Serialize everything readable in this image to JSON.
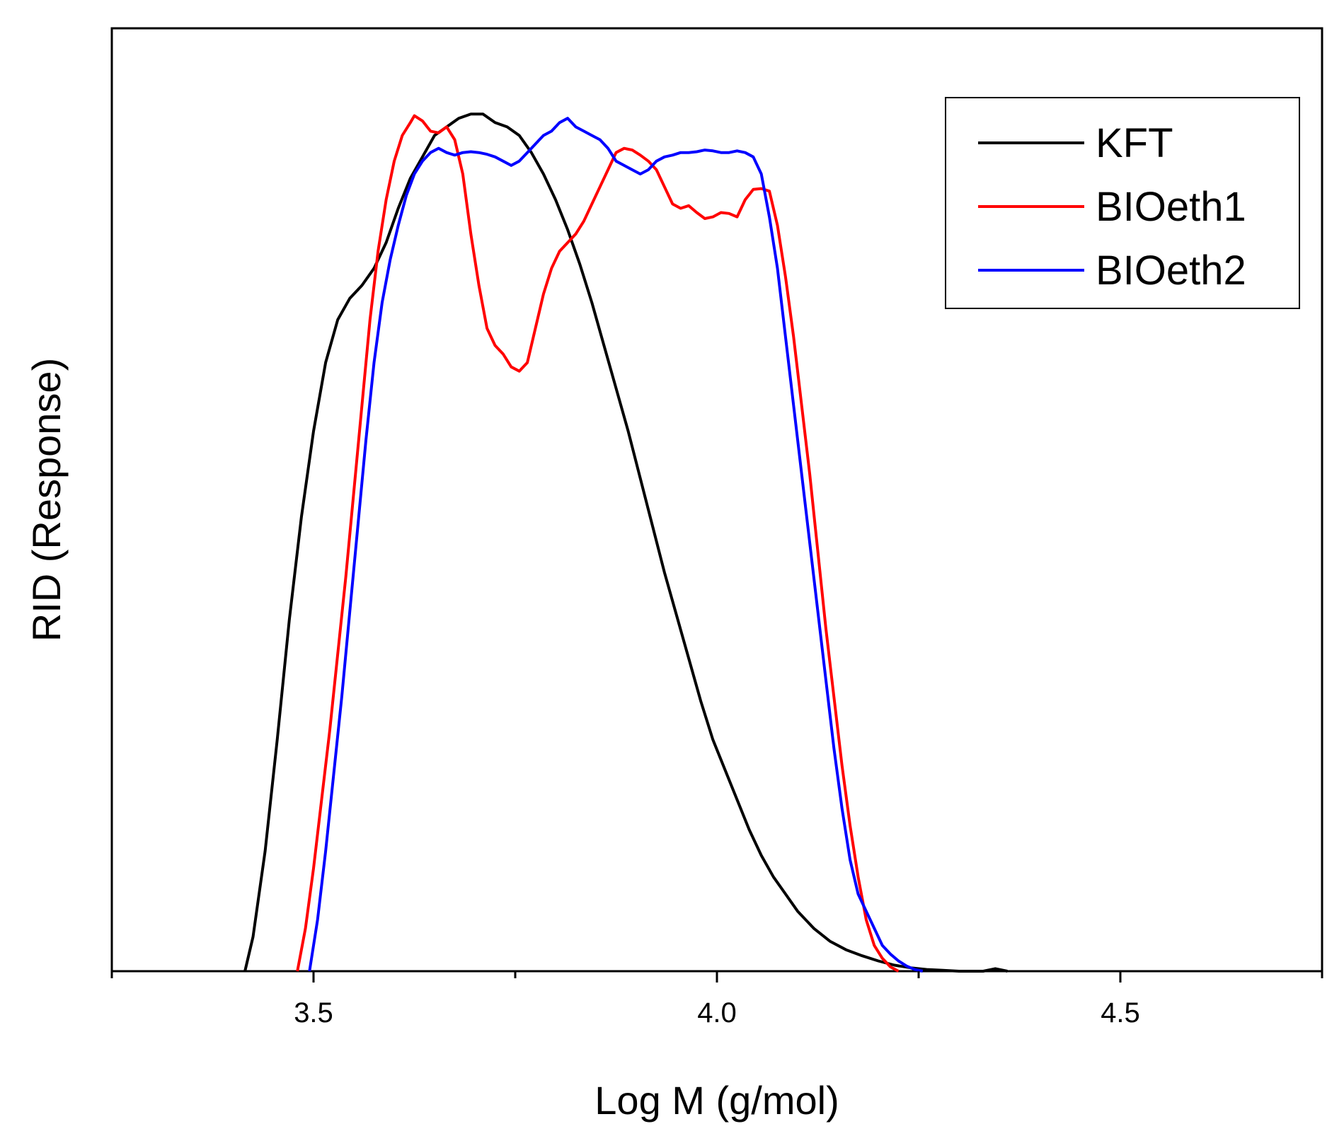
{
  "chart_data": {
    "type": "line",
    "xlabel": "Log M (g/mol)",
    "ylabel": "RID (Response)",
    "xlim": [
      3.25,
      4.75
    ],
    "ylim": [
      0,
      1.1
    ],
    "x_ticks": [
      {
        "value": 3.5,
        "label": "3.5"
      },
      {
        "value": 4.0,
        "label": "4.0"
      },
      {
        "value": 4.5,
        "label": "4.5"
      }
    ],
    "x_minor_ticks": [
      3.25,
      3.75,
      4.25,
      4.75
    ],
    "y_ticks_shown": false,
    "grid": false,
    "legend_position": "top-right",
    "series": [
      {
        "name": "KFT",
        "color": "#000000",
        "points": [
          [
            3.415,
            0.0
          ],
          [
            3.425,
            0.04
          ],
          [
            3.44,
            0.14
          ],
          [
            3.455,
            0.27
          ],
          [
            3.47,
            0.41
          ],
          [
            3.485,
            0.53
          ],
          [
            3.5,
            0.63
          ],
          [
            3.515,
            0.71
          ],
          [
            3.53,
            0.76
          ],
          [
            3.545,
            0.785
          ],
          [
            3.56,
            0.8
          ],
          [
            3.575,
            0.82
          ],
          [
            3.59,
            0.85
          ],
          [
            3.605,
            0.89
          ],
          [
            3.62,
            0.925
          ],
          [
            3.635,
            0.95
          ],
          [
            3.65,
            0.975
          ],
          [
            3.665,
            0.985
          ],
          [
            3.68,
            0.995
          ],
          [
            3.695,
            1.0
          ],
          [
            3.71,
            1.0
          ],
          [
            3.725,
            0.99
          ],
          [
            3.74,
            0.985
          ],
          [
            3.755,
            0.975
          ],
          [
            3.77,
            0.955
          ],
          [
            3.785,
            0.93
          ],
          [
            3.8,
            0.9
          ],
          [
            3.815,
            0.865
          ],
          [
            3.83,
            0.825
          ],
          [
            3.845,
            0.78
          ],
          [
            3.86,
            0.73
          ],
          [
            3.875,
            0.68
          ],
          [
            3.89,
            0.63
          ],
          [
            3.905,
            0.575
          ],
          [
            3.92,
            0.52
          ],
          [
            3.935,
            0.465
          ],
          [
            3.95,
            0.415
          ],
          [
            3.965,
            0.365
          ],
          [
            3.98,
            0.315
          ],
          [
            3.995,
            0.27
          ],
          [
            4.01,
            0.235
          ],
          [
            4.025,
            0.2
          ],
          [
            4.04,
            0.165
          ],
          [
            4.055,
            0.135
          ],
          [
            4.07,
            0.11
          ],
          [
            4.085,
            0.09
          ],
          [
            4.1,
            0.07
          ],
          [
            4.12,
            0.05
          ],
          [
            4.14,
            0.035
          ],
          [
            4.16,
            0.025
          ],
          [
            4.18,
            0.018
          ],
          [
            4.2,
            0.012
          ],
          [
            4.22,
            0.007
          ],
          [
            4.24,
            0.004
          ],
          [
            4.26,
            0.002
          ],
          [
            4.28,
            0.001
          ],
          [
            4.3,
            0.0
          ],
          [
            4.33,
            0.0
          ],
          [
            4.345,
            0.003
          ],
          [
            4.36,
            0.0
          ]
        ]
      },
      {
        "name": "BIOeth1",
        "color": "#ff0000",
        "points": [
          [
            3.48,
            0.0
          ],
          [
            3.49,
            0.05
          ],
          [
            3.5,
            0.12
          ],
          [
            3.51,
            0.2
          ],
          [
            3.52,
            0.28
          ],
          [
            3.53,
            0.37
          ],
          [
            3.54,
            0.46
          ],
          [
            3.55,
            0.56
          ],
          [
            3.56,
            0.66
          ],
          [
            3.57,
            0.76
          ],
          [
            3.58,
            0.84
          ],
          [
            3.59,
            0.9
          ],
          [
            3.6,
            0.945
          ],
          [
            3.61,
            0.975
          ],
          [
            3.62,
            0.99
          ],
          [
            3.625,
            0.998
          ],
          [
            3.635,
            0.992
          ],
          [
            3.645,
            0.98
          ],
          [
            3.655,
            0.978
          ],
          [
            3.665,
            0.985
          ],
          [
            3.675,
            0.97
          ],
          [
            3.685,
            0.93
          ],
          [
            3.695,
            0.86
          ],
          [
            3.705,
            0.8
          ],
          [
            3.715,
            0.75
          ],
          [
            3.725,
            0.73
          ],
          [
            3.735,
            0.72
          ],
          [
            3.745,
            0.705
          ],
          [
            3.755,
            0.7
          ],
          [
            3.765,
            0.71
          ],
          [
            3.775,
            0.75
          ],
          [
            3.785,
            0.79
          ],
          [
            3.795,
            0.82
          ],
          [
            3.805,
            0.84
          ],
          [
            3.815,
            0.85
          ],
          [
            3.825,
            0.86
          ],
          [
            3.835,
            0.875
          ],
          [
            3.845,
            0.895
          ],
          [
            3.855,
            0.915
          ],
          [
            3.865,
            0.935
          ],
          [
            3.875,
            0.955
          ],
          [
            3.885,
            0.96
          ],
          [
            3.895,
            0.958
          ],
          [
            3.905,
            0.952
          ],
          [
            3.915,
            0.945
          ],
          [
            3.925,
            0.935
          ],
          [
            3.935,
            0.915
          ],
          [
            3.945,
            0.895
          ],
          [
            3.955,
            0.89
          ],
          [
            3.965,
            0.893
          ],
          [
            3.975,
            0.885
          ],
          [
            3.985,
            0.878
          ],
          [
            3.995,
            0.88
          ],
          [
            4.005,
            0.885
          ],
          [
            4.015,
            0.884
          ],
          [
            4.025,
            0.88
          ],
          [
            4.035,
            0.9
          ],
          [
            4.045,
            0.912
          ],
          [
            4.055,
            0.913
          ],
          [
            4.065,
            0.91
          ],
          [
            4.075,
            0.87
          ],
          [
            4.085,
            0.81
          ],
          [
            4.095,
            0.74
          ],
          [
            4.105,
            0.66
          ],
          [
            4.115,
            0.58
          ],
          [
            4.125,
            0.49
          ],
          [
            4.135,
            0.4
          ],
          [
            4.145,
            0.32
          ],
          [
            4.155,
            0.24
          ],
          [
            4.165,
            0.17
          ],
          [
            4.175,
            0.11
          ],
          [
            4.185,
            0.06
          ],
          [
            4.195,
            0.03
          ],
          [
            4.205,
            0.015
          ],
          [
            4.215,
            0.005
          ],
          [
            4.225,
            0.0
          ]
        ]
      },
      {
        "name": "BIOeth2",
        "color": "#0000ff",
        "points": [
          [
            3.495,
            0.0
          ],
          [
            3.505,
            0.06
          ],
          [
            3.515,
            0.14
          ],
          [
            3.525,
            0.23
          ],
          [
            3.535,
            0.32
          ],
          [
            3.545,
            0.42
          ],
          [
            3.555,
            0.52
          ],
          [
            3.565,
            0.62
          ],
          [
            3.575,
            0.71
          ],
          [
            3.585,
            0.78
          ],
          [
            3.595,
            0.83
          ],
          [
            3.605,
            0.87
          ],
          [
            3.615,
            0.905
          ],
          [
            3.625,
            0.93
          ],
          [
            3.635,
            0.945
          ],
          [
            3.645,
            0.955
          ],
          [
            3.655,
            0.96
          ],
          [
            3.665,
            0.955
          ],
          [
            3.675,
            0.952
          ],
          [
            3.685,
            0.955
          ],
          [
            3.695,
            0.956
          ],
          [
            3.705,
            0.955
          ],
          [
            3.715,
            0.953
          ],
          [
            3.725,
            0.95
          ],
          [
            3.735,
            0.945
          ],
          [
            3.745,
            0.94
          ],
          [
            3.755,
            0.945
          ],
          [
            3.765,
            0.955
          ],
          [
            3.775,
            0.965
          ],
          [
            3.785,
            0.975
          ],
          [
            3.795,
            0.98
          ],
          [
            3.805,
            0.99
          ],
          [
            3.815,
            0.995
          ],
          [
            3.825,
            0.985
          ],
          [
            3.835,
            0.98
          ],
          [
            3.845,
            0.975
          ],
          [
            3.855,
            0.97
          ],
          [
            3.865,
            0.96
          ],
          [
            3.875,
            0.945
          ],
          [
            3.885,
            0.94
          ],
          [
            3.895,
            0.935
          ],
          [
            3.905,
            0.93
          ],
          [
            3.915,
            0.935
          ],
          [
            3.925,
            0.945
          ],
          [
            3.935,
            0.95
          ],
          [
            3.945,
            0.952
          ],
          [
            3.955,
            0.955
          ],
          [
            3.965,
            0.955
          ],
          [
            3.975,
            0.956
          ],
          [
            3.985,
            0.958
          ],
          [
            3.995,
            0.957
          ],
          [
            4.005,
            0.955
          ],
          [
            4.015,
            0.955
          ],
          [
            4.025,
            0.957
          ],
          [
            4.035,
            0.955
          ],
          [
            4.045,
            0.95
          ],
          [
            4.055,
            0.93
          ],
          [
            4.065,
            0.88
          ],
          [
            4.075,
            0.82
          ],
          [
            4.085,
            0.74
          ],
          [
            4.095,
            0.66
          ],
          [
            4.105,
            0.58
          ],
          [
            4.115,
            0.5
          ],
          [
            4.125,
            0.42
          ],
          [
            4.135,
            0.34
          ],
          [
            4.145,
            0.26
          ],
          [
            4.155,
            0.19
          ],
          [
            4.165,
            0.13
          ],
          [
            4.175,
            0.09
          ],
          [
            4.185,
            0.07
          ],
          [
            4.195,
            0.05
          ],
          [
            4.205,
            0.03
          ],
          [
            4.215,
            0.02
          ],
          [
            4.225,
            0.012
          ],
          [
            4.235,
            0.006
          ],
          [
            4.245,
            0.002
          ],
          [
            4.255,
            0.0
          ]
        ]
      }
    ]
  }
}
